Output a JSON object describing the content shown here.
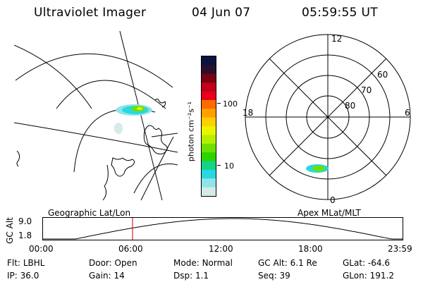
{
  "header": {
    "instrument": "Ultraviolet Imager",
    "date": "04 Jun 07",
    "time": "05:59:55 UT"
  },
  "colorbar": {
    "unit_label": "photon cm⁻²s⁻¹",
    "tick_labels": [
      "100",
      "10"
    ],
    "colors": [
      "#101040",
      "#2a0f2a",
      "#7a0010",
      "#c0001a",
      "#e8001a",
      "#ff6a00",
      "#ffa000",
      "#ffd000",
      "#ecf400",
      "#b6ee00",
      "#6ee000",
      "#2ad400",
      "#14d48a",
      "#28d8e0",
      "#90e4e8",
      "#d6eaea"
    ]
  },
  "polar_plot": {
    "hour_labels": [
      "12",
      "18",
      "6",
      "0"
    ],
    "lat_labels": [
      "60",
      "70",
      "80"
    ]
  },
  "geo_map": {
    "label": "Geographic Lat/Lon"
  },
  "apex_label": "Apex MLat/MLT",
  "altitude_plot": {
    "ylabel": "GC Alt",
    "ytick_labels": [
      "9.0",
      "1.8"
    ],
    "xtick_labels": [
      "00:00",
      "06:00",
      "12:00",
      "18:00",
      "23:59"
    ],
    "marker_time": "06:00",
    "marker_color": "#cc0000"
  },
  "status": {
    "row1": [
      {
        "key": "Flt:",
        "value": "LBHL"
      },
      {
        "key": "Door:",
        "value": "Open"
      },
      {
        "key": "Mode:",
        "value": "Normal"
      },
      {
        "key": "GC Alt:",
        "value": "6.1 Re"
      },
      {
        "key": "GLat:",
        "value": "-64.6"
      }
    ],
    "row2": [
      {
        "key": "IP:",
        "value": "36.0"
      },
      {
        "key": "Gain:",
        "value": "14"
      },
      {
        "key": "Dsp:",
        "value": "1.1"
      },
      {
        "key": "Seq:",
        "value": "39"
      },
      {
        "key": "GLon:",
        "value": "191.2"
      }
    ]
  }
}
